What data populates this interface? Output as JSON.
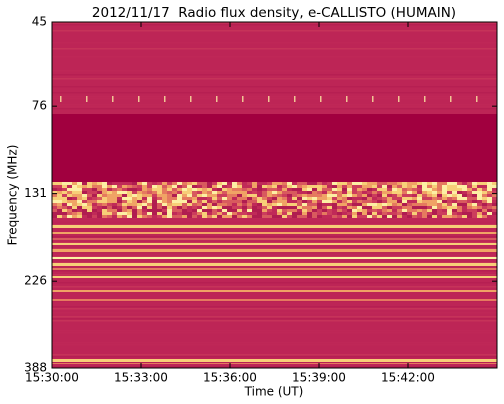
{
  "chart_data": {
    "type": "spectrogram",
    "title": "2012/11/17  Radio flux density, e-CALLISTO (HUMAIN)",
    "x_label": "Time (UT)",
    "y_label": "Frequency (MHz)",
    "xlim": [
      "15:30:00",
      "15:45:00"
    ],
    "xticks": [
      "15:30:00",
      "15:33:00",
      "15:36:00",
      "15:39:00",
      "15:42:00"
    ],
    "ylim": [
      45,
      388
    ],
    "yticks": [
      45,
      76,
      131,
      226,
      388
    ],
    "yscale": "log",
    "y_inverted": true
  }
}
